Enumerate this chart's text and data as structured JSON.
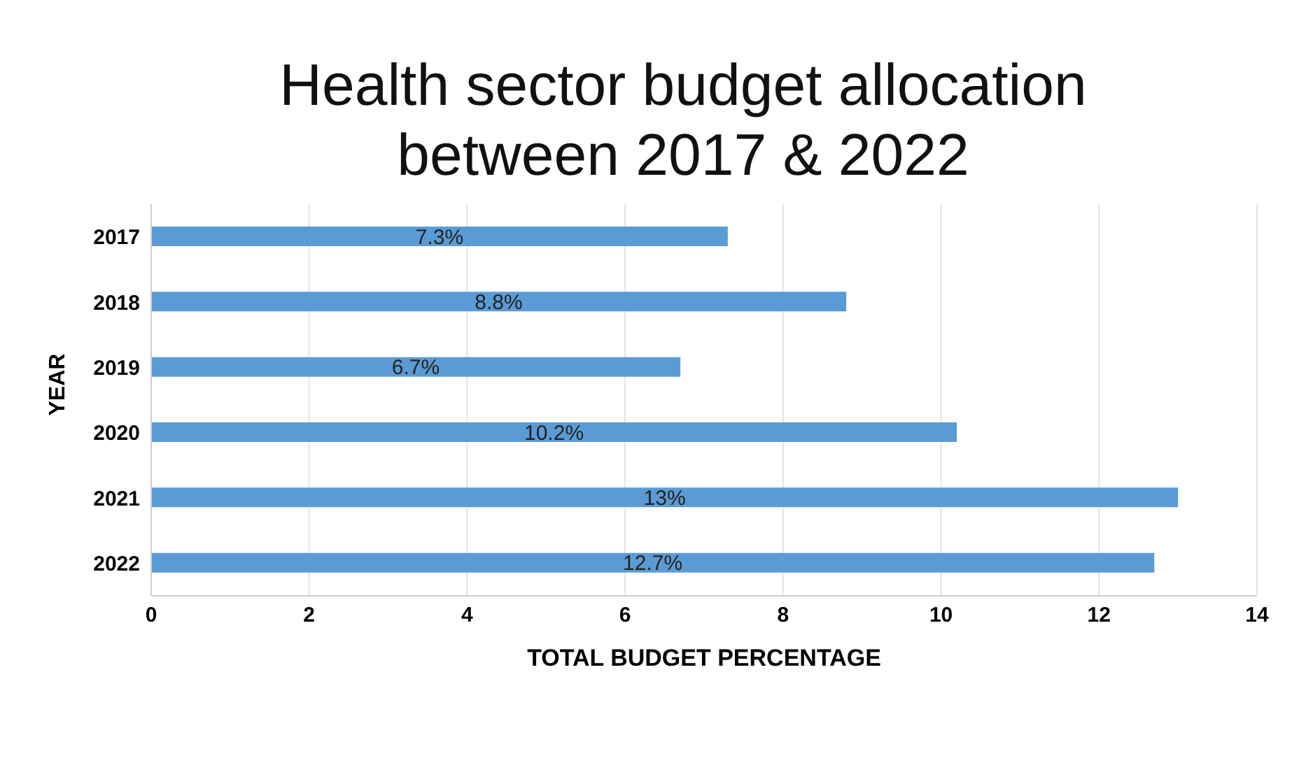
{
  "chart_data": {
    "type": "bar",
    "orientation": "horizontal",
    "title": "Health sector budget allocation\nbetween 2017 & 2022",
    "xlabel": "TOTAL BUDGET PERCENTAGE",
    "ylabel": "YEAR",
    "categories": [
      "2017",
      "2018",
      "2019",
      "2020",
      "2021",
      "2022"
    ],
    "values": [
      7.3,
      8.8,
      6.7,
      10.2,
      13,
      12.7
    ],
    "value_labels": [
      "7.3%",
      "8.8%",
      "6.7%",
      "10.2%",
      "13%",
      "12.7%"
    ],
    "color": "#5b9bd5",
    "xlim": [
      0,
      14
    ],
    "xticks": [
      0,
      2,
      4,
      6,
      8,
      10,
      12,
      14
    ],
    "grid": "x"
  }
}
